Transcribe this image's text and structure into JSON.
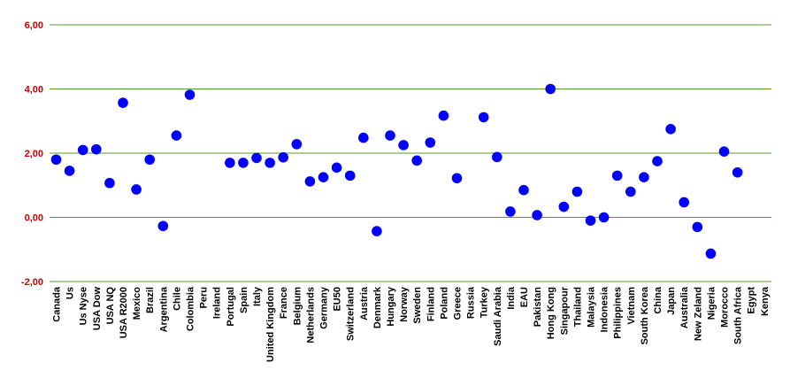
{
  "chart_data": {
    "type": "scatter",
    "title": "",
    "xlabel": "",
    "ylabel": "",
    "ylim": [
      -2,
      6
    ],
    "yticks": [
      "6,00",
      "4,00",
      "2,00",
      "0,00",
      "-2,00"
    ],
    "grid": true,
    "categories": [
      "Canada",
      "Us",
      "Us Nyse",
      "USA Dow",
      "USA NQ",
      "USA R2000",
      "Mexico",
      "Brazil",
      "Argentina",
      "Chile",
      "Colombia",
      "Peru",
      "Ireland",
      "Portugal",
      "Spain",
      "Italy",
      "United Kingdom",
      "France",
      "Belgium",
      "Netherlands",
      "Germany",
      "EU50",
      "Switzerland",
      "Austria",
      "Denmark",
      "Hungary",
      "Norway",
      "Sweden",
      "Finland",
      "Poland",
      "Greece",
      "Russia",
      "Turkey",
      "Saudi Arabia",
      "India",
      "EAU",
      "Pakistan",
      "Hong Kong",
      "Singapour",
      "Thailand",
      "Malaysia",
      "Indonesia",
      "Philippines",
      "Vietnam",
      "South Korea",
      "China",
      "Japan",
      "Australia",
      "New Zeland",
      "Nigeria",
      "Morocco",
      "South Africa",
      "Egypt",
      "Kenya"
    ],
    "series": [
      {
        "values": [
          1.8,
          1.45,
          2.1,
          2.12,
          1.07,
          3.57,
          0.87,
          1.8,
          -0.27,
          2.55,
          3.82,
          null,
          null,
          1.7,
          1.7,
          1.85,
          1.7,
          1.87,
          2.28,
          1.12,
          1.25,
          1.55,
          1.3,
          2.48,
          -0.43,
          2.55,
          2.25,
          1.77,
          2.33,
          3.17,
          1.22,
          null,
          3.12,
          1.88,
          0.18,
          0.85,
          0.07,
          4.0,
          0.33,
          0.8,
          -0.1,
          0.0,
          1.3,
          0.8,
          1.25,
          1.75,
          2.75,
          0.47,
          -0.3,
          -1.13,
          2.05,
          1.4,
          null,
          null
        ]
      }
    ],
    "colors": {
      "marker": "#0000ff",
      "grid": "#5a9a2e",
      "ytick": "#cc0000",
      "xtick": "#000000"
    }
  }
}
